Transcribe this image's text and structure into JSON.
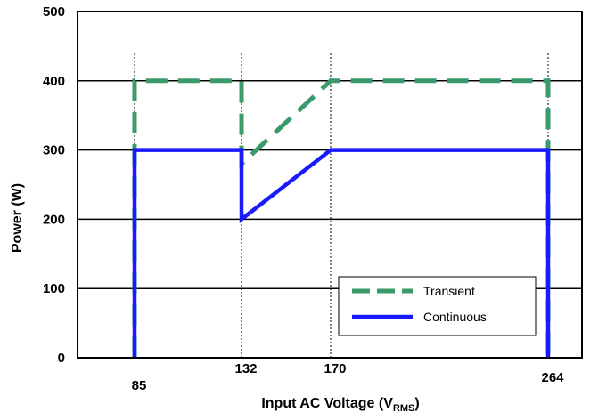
{
  "chart_data": {
    "type": "line",
    "ylabel": "Power (W)",
    "xlabel": {
      "main": "Input AC Voltage (V",
      "sub": "RMS",
      "close": ")"
    },
    "xlim": [
      85,
      264
    ],
    "ylim": [
      0,
      500
    ],
    "yticks": [
      0,
      100,
      200,
      300,
      400,
      500
    ],
    "xticks": [
      85,
      132,
      170,
      264
    ],
    "grid": "horizontal lines at y ticks; vertical dotted markers at x ticks",
    "legend_position": "bottom-right",
    "series": [
      {
        "name": "Transient",
        "style": "dashed",
        "color": "#3a9a6a",
        "points": [
          [
            85,
            0
          ],
          [
            85,
            400
          ],
          [
            132,
            400
          ],
          [
            132,
            280
          ],
          [
            170,
            400
          ],
          [
            264,
            400
          ],
          [
            264,
            0
          ]
        ]
      },
      {
        "name": "Continuous",
        "style": "solid",
        "color": "#1a1aff",
        "points": [
          [
            85,
            0
          ],
          [
            85,
            300
          ],
          [
            132,
            300
          ],
          [
            132,
            200
          ],
          [
            170,
            300
          ],
          [
            264,
            300
          ],
          [
            264,
            0
          ]
        ]
      }
    ]
  }
}
